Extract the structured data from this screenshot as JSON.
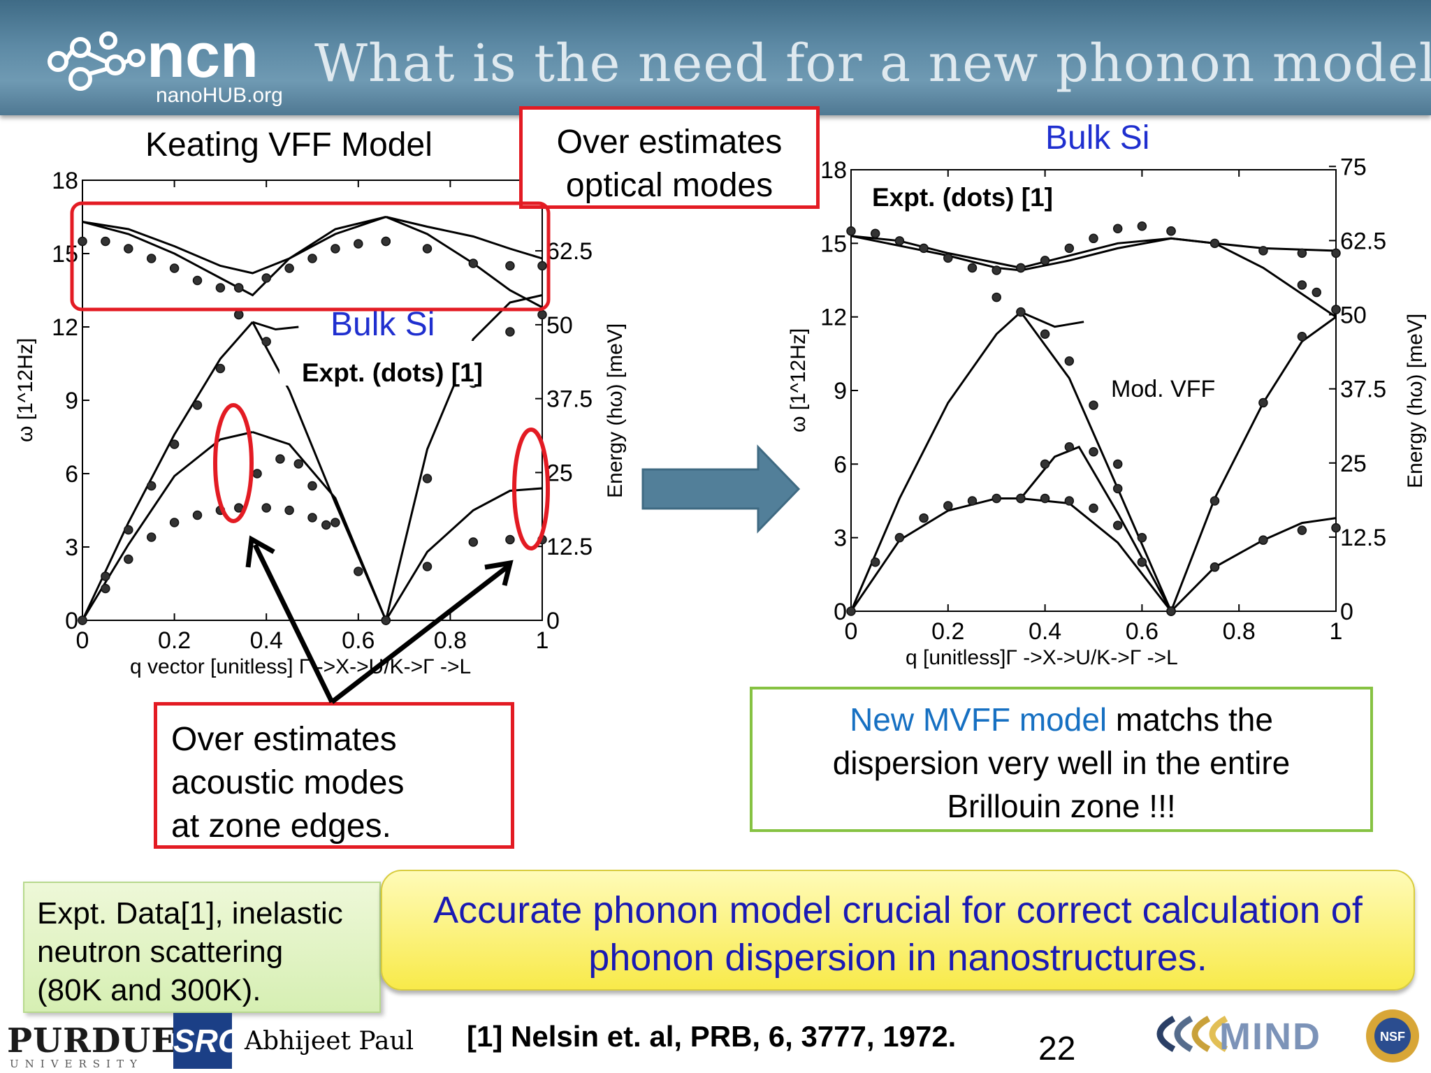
{
  "header": {
    "title": "What is the need for a new phonon model??",
    "logo_text": "nanoHUB.org"
  },
  "left_plot": {
    "title": "Keating VFF Model",
    "inner_label": "Bulk Si",
    "inner_expt": "Expt. (dots) [1]",
    "ylabel_left": "ω [1^12Hz]",
    "ylabel_right": "Energy (hω) [meV]",
    "xlabel": "q vector [unitless] Γ ->X->U/K->Γ ->L",
    "xticks": [
      "0",
      "0.2",
      "0.4",
      "0.6",
      "0.8",
      "1"
    ],
    "yticks_left": [
      "0",
      "3",
      "6",
      "9",
      "12",
      "15",
      "18"
    ],
    "yticks_right": [
      "0",
      "12.5",
      "25",
      "37.5",
      "50",
      "62.5"
    ]
  },
  "right_plot": {
    "title": "Bulk Si",
    "inner_expt": "Expt. (dots) [1]",
    "inner_label": "Mod. VFF",
    "ylabel_left": "ω [1^12Hz]",
    "ylabel_right": "Energy (hω) [meV]",
    "xlabel": "q [unitless]Γ ->X->U/K->Γ ->L",
    "xticks": [
      "0",
      "0.2",
      "0.4",
      "0.6",
      "0.8",
      "1"
    ],
    "yticks_left": [
      "0",
      "3",
      "6",
      "9",
      "12",
      "15",
      "18"
    ],
    "yticks_right": [
      "0",
      "12.5",
      "25",
      "37.5",
      "50",
      "62.5",
      "75"
    ]
  },
  "callouts": {
    "optical": "Over estimates optical modes",
    "optical_line1": "Over estimates",
    "optical_line2": "optical modes",
    "acoustic_line1": "Over estimates",
    "acoustic_line2": "acoustic modes",
    "acoustic_line3": "at zone edges."
  },
  "green_box": {
    "highlight": "New MVFF model",
    "line1_rest": " matchs the",
    "line2": "dispersion very well in the entire",
    "line3": "Brillouin zone !!!"
  },
  "expt_box": {
    "line1": "Expt. Data[1], inelastic",
    "line2": "neutron scattering",
    "line3": "(80K and 300K)."
  },
  "yellow_box": {
    "line1": "Accurate phonon model crucial for correct calculation of",
    "line2": "phonon dispersion in nanostructures."
  },
  "footer": {
    "reference": "[1] Nelsin et. al, PRB, 6, 3777, 1972.",
    "page": "22",
    "author": "Abhijeet Paul",
    "purdue": "PURDUE",
    "purdue_sub": "UNIVERSITY",
    "src": "SRC",
    "mind": "MIND",
    "nsf": "NSF"
  },
  "colors": {
    "accent_red": "#e31b23",
    "accent_blue": "#1f2fcf",
    "arrow": "#4f7f9a",
    "green": "#86c242"
  },
  "chart_data": [
    {
      "type": "line",
      "title": "Keating VFF Model",
      "xlabel": "q vector [unitless] Γ ->X->U/K->Γ ->L",
      "ylabel": "ω [1^12Hz]",
      "xlim": [
        0,
        1
      ],
      "ylim": [
        0,
        18
      ],
      "series": [
        {
          "x": [
            0,
            0.1,
            0.2,
            0.3,
            0.37,
            0.45,
            0.55,
            0.66
          ],
          "y": [
            16.3,
            16.0,
            15.3,
            14.5,
            14.2,
            14.8,
            15.8,
            16.5
          ]
        },
        {
          "x": [
            0.66,
            0.75,
            0.85,
            0.93,
            1
          ],
          "y": [
            16.5,
            16.1,
            15.7,
            15.2,
            14.8
          ]
        },
        {
          "x": [
            0,
            0.1,
            0.2,
            0.3,
            0.37,
            0.45,
            0.55,
            0.66
          ],
          "y": [
            16.3,
            15.8,
            15.0,
            14.0,
            13.3,
            14.8,
            16.0,
            16.5
          ]
        },
        {
          "x": [
            0.66,
            0.75,
            0.85,
            0.93,
            1
          ],
          "y": [
            16.5,
            15.8,
            14.6,
            13.5,
            12.8
          ]
        },
        {
          "x": [
            0,
            0.1,
            0.2,
            0.3,
            0.37
          ],
          "y": [
            0,
            4.0,
            7.6,
            10.7,
            12.2
          ]
        },
        {
          "x": [
            0.37,
            0.42,
            0.47
          ],
          "y": [
            12.2,
            11.9,
            12.0
          ]
        },
        {
          "x": [
            0,
            0.1,
            0.2,
            0.3,
            0.37
          ],
          "y": [
            0,
            3.1,
            5.9,
            7.4,
            7.7
          ]
        },
        {
          "x": [
            0.37,
            0.45,
            0.55,
            0.66
          ],
          "y": [
            7.7,
            7.2,
            5.0,
            0
          ]
        },
        {
          "x": [
            0.37,
            0.45,
            0.55,
            0.66
          ],
          "y": [
            12.2,
            9.4,
            4.8,
            0
          ]
        },
        {
          "x": [
            0.66,
            0.75,
            0.85,
            0.93,
            1
          ],
          "y": [
            0,
            7.0,
            11.5,
            13.0,
            13.3
          ]
        },
        {
          "x": [
            0.66,
            0.75,
            0.85,
            0.93,
            1
          ],
          "y": [
            0,
            2.8,
            4.5,
            5.3,
            5.4
          ]
        }
      ],
      "experiment": [
        {
          "x": [
            0,
            0.05,
            0.1,
            0.15,
            0.2,
            0.25,
            0.3,
            0.34
          ],
          "y": [
            15.5,
            15.5,
            15.2,
            14.8,
            14.4,
            13.9,
            13.6,
            13.6
          ]
        },
        {
          "x": [
            0.34,
            0.4,
            0.45,
            0.5,
            0.55,
            0.6,
            0.66
          ],
          "y": [
            13.6,
            14.0,
            14.4,
            14.8,
            15.2,
            15.4,
            15.5
          ]
        },
        {
          "x": [
            0.66,
            0.75,
            0.85,
            0.93,
            1
          ],
          "y": [
            15.5,
            15.2,
            14.6,
            14.5,
            14.5
          ]
        },
        {
          "x": [
            0.34,
            0.4,
            0.45
          ],
          "y": [
            12.5,
            11.4,
            11.0
          ]
        },
        {
          "x": [
            0,
            0.05,
            0.1,
            0.15,
            0.2,
            0.25,
            0.3,
            0.34
          ],
          "y": [
            0,
            1.8,
            3.7,
            5.5,
            7.2,
            8.8,
            10.3,
            12.5
          ]
        },
        {
          "x": [
            0,
            0.05,
            0.1,
            0.15,
            0.2,
            0.25,
            0.3,
            0.34,
            0.4,
            0.45,
            0.5,
            0.53
          ],
          "y": [
            0,
            1.3,
            2.5,
            3.4,
            4.0,
            4.3,
            4.5,
            4.6,
            4.6,
            4.5,
            4.2,
            3.9
          ]
        },
        {
          "x": [
            0.38,
            0.43,
            0.47,
            0.5,
            0.55,
            0.6,
            0.66
          ],
          "y": [
            6.0,
            6.6,
            6.4,
            5.5,
            4.0,
            2.0,
            0
          ]
        },
        {
          "x": [
            0.66,
            0.75,
            0.85,
            0.93,
            1
          ],
          "y": [
            0,
            5.8,
            9.7,
            11.8,
            12.5
          ]
        },
        {
          "x": [
            0.66,
            0.75,
            0.85,
            0.93,
            1
          ],
          "y": [
            0,
            2.2,
            3.2,
            3.3,
            3.3
          ]
        }
      ]
    },
    {
      "type": "line",
      "title": "Bulk Si",
      "xlabel": "q [unitless]Γ ->X->U/K->Γ ->L",
      "ylabel": "ω [1^12Hz]",
      "xlim": [
        0,
        1
      ],
      "ylim": [
        0,
        18
      ],
      "series": [
        {
          "x": [
            0,
            0.1,
            0.2,
            0.3,
            0.35,
            0.45,
            0.55,
            0.66,
            0.75,
            0.85,
            1
          ],
          "y": [
            15.3,
            15.1,
            14.6,
            14.2,
            14.0,
            14.5,
            15.0,
            15.2,
            15.0,
            14.8,
            14.7
          ]
        },
        {
          "x": [
            0,
            0.1,
            0.2,
            0.3,
            0.35,
            0.45,
            0.55,
            0.66,
            0.75,
            0.85,
            1
          ],
          "y": [
            15.3,
            14.9,
            14.5,
            14.0,
            13.9,
            14.3,
            14.8,
            15.2,
            15.0,
            14.0,
            12.0
          ]
        },
        {
          "x": [
            0,
            0.1,
            0.2,
            0.3,
            0.35,
            0.42,
            0.48
          ],
          "y": [
            0,
            4.6,
            8.5,
            11.3,
            12.2,
            11.6,
            11.8
          ]
        },
        {
          "x": [
            0,
            0.1,
            0.2,
            0.3,
            0.35
          ],
          "y": [
            0,
            2.9,
            4.1,
            4.6,
            4.6
          ]
        },
        {
          "x": [
            0.35,
            0.42,
            0.47,
            0.55,
            0.66
          ],
          "y": [
            4.6,
            6.3,
            6.7,
            4.0,
            0
          ]
        },
        {
          "x": [
            0.35,
            0.45,
            0.55,
            0.66
          ],
          "y": [
            12.2,
            9.5,
            5.0,
            0
          ]
        },
        {
          "x": [
            0.35,
            0.45,
            0.55,
            0.66
          ],
          "y": [
            4.6,
            4.4,
            2.8,
            0
          ]
        },
        {
          "x": [
            0.66,
            0.75,
            0.85,
            0.93,
            1
          ],
          "y": [
            0,
            4.6,
            8.5,
            11.0,
            12.0
          ]
        },
        {
          "x": [
            0.66,
            0.75,
            0.85,
            0.93,
            1
          ],
          "y": [
            0,
            1.8,
            2.9,
            3.6,
            3.8
          ]
        }
      ],
      "experiment": [
        {
          "x": [
            0,
            0.05,
            0.1,
            0.15,
            0.2,
            0.25,
            0.3,
            0.35
          ],
          "y": [
            15.5,
            15.4,
            15.1,
            14.8,
            14.4,
            14.0,
            13.9,
            14.0
          ]
        },
        {
          "x": [
            0.35,
            0.4,
            0.45,
            0.5,
            0.55,
            0.6,
            0.66
          ],
          "y": [
            14.0,
            14.3,
            14.8,
            15.2,
            15.6,
            15.7,
            15.5
          ]
        },
        {
          "x": [
            0.66,
            0.75,
            0.85,
            0.93,
            1
          ],
          "y": [
            15.5,
            15.0,
            14.7,
            14.6,
            14.6
          ]
        },
        {
          "x": [
            0.3,
            0.35,
            0.4,
            0.45,
            0.5,
            0.55,
            0.6,
            0.66
          ],
          "y": [
            12.8,
            12.2,
            11.3,
            10.2,
            8.4,
            6.0,
            3.0,
            0
          ]
        },
        {
          "x": [
            0,
            0.05,
            0.1,
            0.15,
            0.2,
            0.25,
            0.3,
            0.35
          ],
          "y": [
            0,
            2.0,
            3.0,
            3.8,
            4.3,
            4.5,
            4.6,
            4.6
          ]
        },
        {
          "x": [
            0.35,
            0.4,
            0.45,
            0.5,
            0.55,
            0.6,
            0.66
          ],
          "y": [
            4.6,
            4.6,
            4.5,
            4.2,
            3.5,
            2.0,
            0
          ]
        },
        {
          "x": [
            0.35,
            0.4,
            0.45,
            0.5,
            0.55
          ],
          "y": [
            4.6,
            6.0,
            6.7,
            6.5,
            5.0
          ]
        },
        {
          "x": [
            0.66,
            0.75,
            0.85,
            0.93,
            1
          ],
          "y": [
            0,
            4.5,
            8.5,
            11.2,
            12.3
          ]
        },
        {
          "x": [
            0.66,
            0.75,
            0.85,
            0.93,
            1
          ],
          "y": [
            0,
            1.8,
            2.9,
            3.3,
            3.4
          ]
        },
        {
          "x": [
            0.93,
            0.96,
            1
          ],
          "y": [
            13.3,
            13.0,
            12.3
          ]
        }
      ]
    }
  ]
}
